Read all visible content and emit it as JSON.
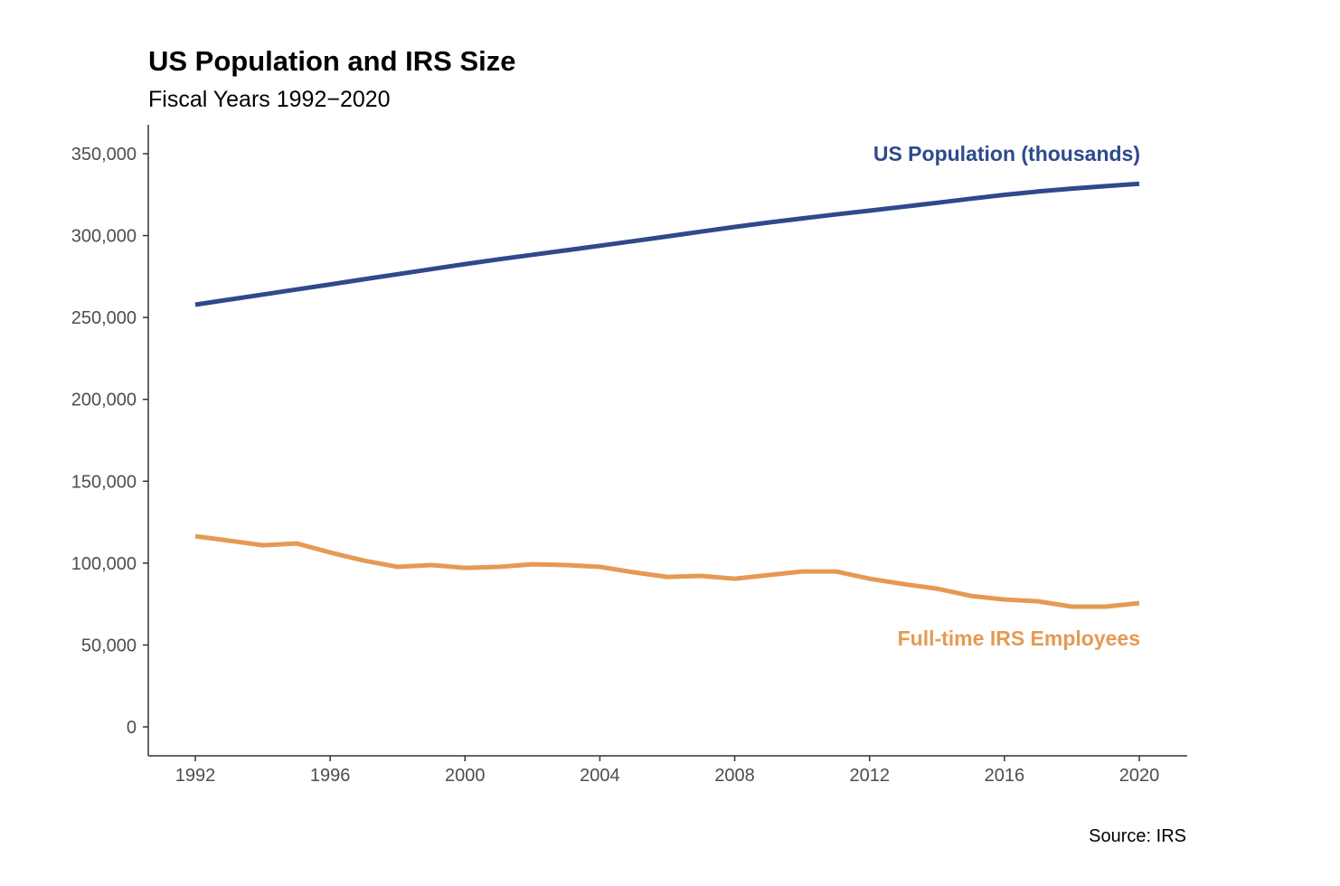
{
  "chart_data": {
    "type": "line",
    "title": "US Population and IRS Size",
    "subtitle": "Fiscal Years 1992−2020",
    "caption": "Source: IRS",
    "xlabel": "",
    "ylabel": "",
    "xlim": [
      1992,
      2020
    ],
    "ylim": [
      0,
      350000
    ],
    "x_ticks": [
      1992,
      1996,
      2000,
      2004,
      2008,
      2012,
      2016,
      2020
    ],
    "y_ticks": [
      0,
      50000,
      100000,
      150000,
      200000,
      250000,
      300000,
      350000
    ],
    "y_tick_labels": [
      "0",
      "50,000",
      "100,000",
      "150,000",
      "200,000",
      "250,000",
      "300,000",
      "350,000"
    ],
    "grid": false,
    "legend": "direct labels at right end of lines",
    "x": [
      1992,
      1993,
      1994,
      1995,
      1996,
      1997,
      1998,
      1999,
      2000,
      2001,
      2002,
      2003,
      2004,
      2005,
      2006,
      2007,
      2008,
      2009,
      2010,
      2011,
      2012,
      2013,
      2014,
      2015,
      2016,
      2017,
      2018,
      2019,
      2020
    ],
    "series": [
      {
        "name": "US Population (thousands)",
        "color": "#2e4a8b",
        "values": [
          257800,
          260900,
          264000,
          267100,
          270200,
          273300,
          276400,
          279500,
          282600,
          285500,
          288300,
          291000,
          293800,
          296600,
          299500,
          302400,
          305300,
          308000,
          310500,
          312900,
          315200,
          317600,
          320000,
          322500,
          324900,
          326900,
          328700,
          330200,
          331600
        ]
      },
      {
        "name": "Full-time IRS Employees",
        "color": "#e59a52",
        "values": [
          116400,
          113700,
          110900,
          112000,
          106500,
          101500,
          97700,
          98800,
          97100,
          97700,
          99300,
          98800,
          97700,
          94400,
          91600,
          92200,
          90500,
          92700,
          94900,
          94900,
          90500,
          87200,
          84400,
          80000,
          77800,
          76700,
          73400,
          73400,
          75600
        ]
      }
    ]
  }
}
